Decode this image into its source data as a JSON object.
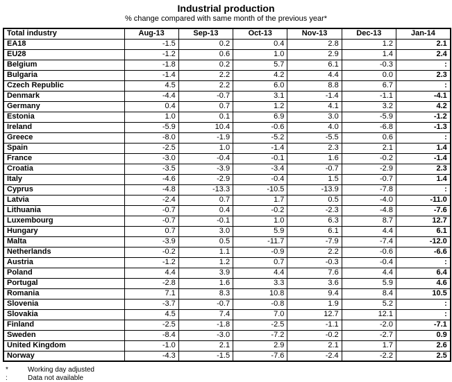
{
  "title": "Industrial production",
  "subtitle": "% change compared with same month of the previous year*",
  "colors": {
    "text": "#000000",
    "border": "#000000",
    "background": "#ffffff"
  },
  "table": {
    "missing_symbol": ":",
    "header": [
      "Total industry",
      "Aug-13",
      "Sep-13",
      "Oct-13",
      "Nov-13",
      "Dec-13",
      "Jan-14"
    ],
    "rows": [
      {
        "label": "EA18",
        "values": [
          "-1.5",
          "0.2",
          "0.4",
          "2.8",
          "1.2",
          "2.1"
        ]
      },
      {
        "label": "EU28",
        "values": [
          "-1.2",
          "0.6",
          "1.0",
          "2.9",
          "1.4",
          "2.4"
        ]
      },
      {
        "label": "Belgium",
        "values": [
          "-1.8",
          "0.2",
          "5.7",
          "6.1",
          "-0.3",
          ":"
        ]
      },
      {
        "label": "Bulgaria",
        "values": [
          "-1.4",
          "2.2",
          "4.2",
          "4.4",
          "0.0",
          "2.3"
        ]
      },
      {
        "label": "Czech Republic",
        "values": [
          "4.5",
          "2.2",
          "6.0",
          "8.8",
          "6.7",
          ":"
        ]
      },
      {
        "label": "Denmark",
        "values": [
          "-4.4",
          "-0.7",
          "3.1",
          "-1.4",
          "-1.1",
          "-4.1"
        ]
      },
      {
        "label": "Germany",
        "values": [
          "0.4",
          "0.7",
          "1.2",
          "4.1",
          "3.2",
          "4.2"
        ]
      },
      {
        "label": "Estonia",
        "values": [
          "1.0",
          "0.1",
          "6.9",
          "3.0",
          "-5.9",
          "-1.2"
        ]
      },
      {
        "label": "Ireland",
        "values": [
          "-5.9",
          "10.4",
          "-0.6",
          "4.0",
          "-6.8",
          "-1.3"
        ]
      },
      {
        "label": "Greece",
        "values": [
          "-8.0",
          "-1.9",
          "-5.2",
          "-5.5",
          "0.6",
          ":"
        ]
      },
      {
        "label": "Spain",
        "values": [
          "-2.5",
          "1.0",
          "-1.4",
          "2.3",
          "2.1",
          "1.4"
        ]
      },
      {
        "label": "France",
        "values": [
          "-3.0",
          "-0.4",
          "-0.1",
          "1.6",
          "-0.2",
          "-1.4"
        ]
      },
      {
        "label": "Croatia",
        "values": [
          "-3.5",
          "-3.9",
          "-3.4",
          "-0.7",
          "-2.9",
          "2.3"
        ]
      },
      {
        "label": "Italy",
        "values": [
          "-4.6",
          "-2.9",
          "-0.4",
          "1.5",
          "-0.7",
          "1.4"
        ]
      },
      {
        "label": "Cyprus",
        "values": [
          "-4.8",
          "-13.3",
          "-10.5",
          "-13.9",
          "-7.8",
          ":"
        ]
      },
      {
        "label": "Latvia",
        "values": [
          "-2.4",
          "0.7",
          "1.7",
          "0.5",
          "-4.0",
          "-11.0"
        ]
      },
      {
        "label": "Lithuania",
        "values": [
          "-0.7",
          "0.4",
          "-0.2",
          "-2.3",
          "-4.8",
          "-7.6"
        ]
      },
      {
        "label": "Luxembourg",
        "values": [
          "-0.7",
          "-0.1",
          "1.0",
          "6.3",
          "8.7",
          "12.7"
        ]
      },
      {
        "label": "Hungary",
        "values": [
          "0.7",
          "3.0",
          "5.9",
          "6.1",
          "4.4",
          "6.1"
        ]
      },
      {
        "label": "Malta",
        "values": [
          "-3.9",
          "0.5",
          "-11.7",
          "-7.9",
          "-7.4",
          "-12.0"
        ]
      },
      {
        "label": "Netherlands",
        "values": [
          "-0.2",
          "1.1",
          "-0.9",
          "2.2",
          "-0.6",
          "-6.6"
        ]
      },
      {
        "label": "Austria",
        "values": [
          "-1.2",
          "1.2",
          "0.7",
          "-0.3",
          "-0.4",
          ":"
        ]
      },
      {
        "label": "Poland",
        "values": [
          "4.4",
          "3.9",
          "4.4",
          "7.6",
          "4.4",
          "6.4"
        ]
      },
      {
        "label": "Portugal",
        "values": [
          "-2.8",
          "1.6",
          "3.3",
          "3.6",
          "5.9",
          "4.6"
        ]
      },
      {
        "label": "Romania",
        "values": [
          "7.1",
          "8.3",
          "10.8",
          "9.4",
          "8.4",
          "10.5"
        ]
      },
      {
        "label": "Slovenia",
        "values": [
          "-3.7",
          "-0.7",
          "-0.8",
          "1.9",
          "5.2",
          ":"
        ]
      },
      {
        "label": "Slovakia",
        "values": [
          "4.5",
          "7.4",
          "7.0",
          "12.7",
          "12.1",
          ":"
        ]
      },
      {
        "label": "Finland",
        "values": [
          "-2.5",
          "-1.8",
          "-2.5",
          "-1.1",
          "-2.0",
          "-7.1"
        ]
      },
      {
        "label": "Sweden",
        "values": [
          "-8.4",
          "-3.0",
          "-7.2",
          "-0.2",
          "-2.7",
          "0.9"
        ]
      },
      {
        "label": "United Kingdom",
        "values": [
          "-1.0",
          "2.1",
          "2.9",
          "2.1",
          "1.7",
          "2.6"
        ]
      },
      {
        "label": "Norway",
        "values": [
          "-4.3",
          "-1.5",
          "-7.6",
          "-2.4",
          "-2.2",
          "2.5"
        ]
      }
    ]
  },
  "footnotes": [
    {
      "marker": "*",
      "text": "Working day adjusted"
    },
    {
      "marker": ":",
      "text": "Data not available"
    }
  ]
}
